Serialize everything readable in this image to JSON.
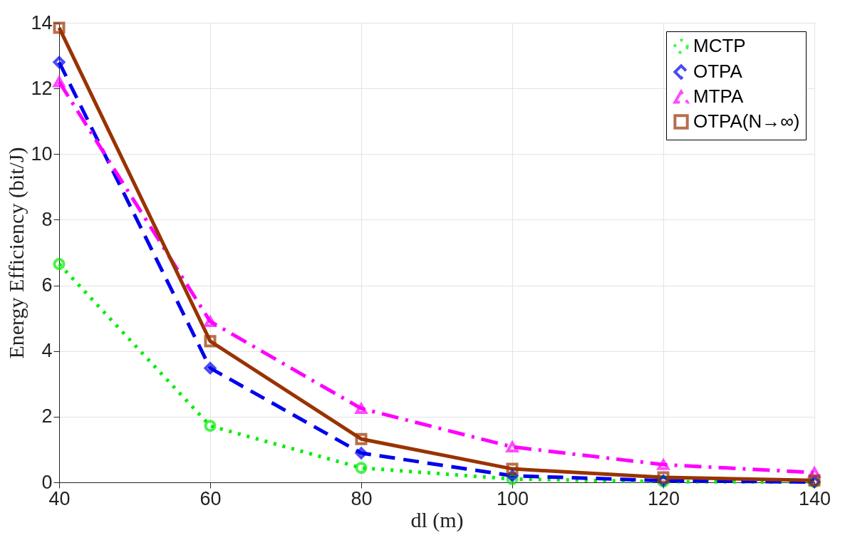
{
  "chart_data": {
    "type": "line",
    "xlabel": "dl (m)",
    "ylabel": "Energy Efficiency (bit/J)",
    "x": [
      40,
      60,
      80,
      100,
      120,
      140
    ],
    "xlim": [
      40,
      140
    ],
    "xticks": [
      40,
      60,
      80,
      100,
      120,
      140
    ],
    "ylim": [
      0,
      14
    ],
    "yticks": [
      0,
      2,
      4,
      6,
      8,
      10,
      12,
      14
    ],
    "grid": true,
    "legend": "top right",
    "series": [
      {
        "name": "MCTP",
        "color": "#00ee00",
        "marker": "circle",
        "line_style": "dotted",
        "values": [
          6.65,
          1.72,
          0.44,
          0.1,
          0.02,
          0.01
        ]
      },
      {
        "name": "OTPA",
        "color": "#0000ee",
        "marker": "diamond",
        "line_style": "dashed",
        "values": [
          12.8,
          3.48,
          0.89,
          0.2,
          0.05,
          0.01
        ]
      },
      {
        "name": "MTPA",
        "color": "#ff00ff",
        "marker": "triangle",
        "line_style": "dashdot",
        "values": [
          12.2,
          4.9,
          2.25,
          1.08,
          0.54,
          0.3
        ]
      },
      {
        "name": "OTPA(N→∞)",
        "color": "#993300",
        "marker": "square",
        "line_style": "solid",
        "values": [
          13.85,
          4.3,
          1.32,
          0.41,
          0.15,
          0.06
        ]
      }
    ]
  }
}
